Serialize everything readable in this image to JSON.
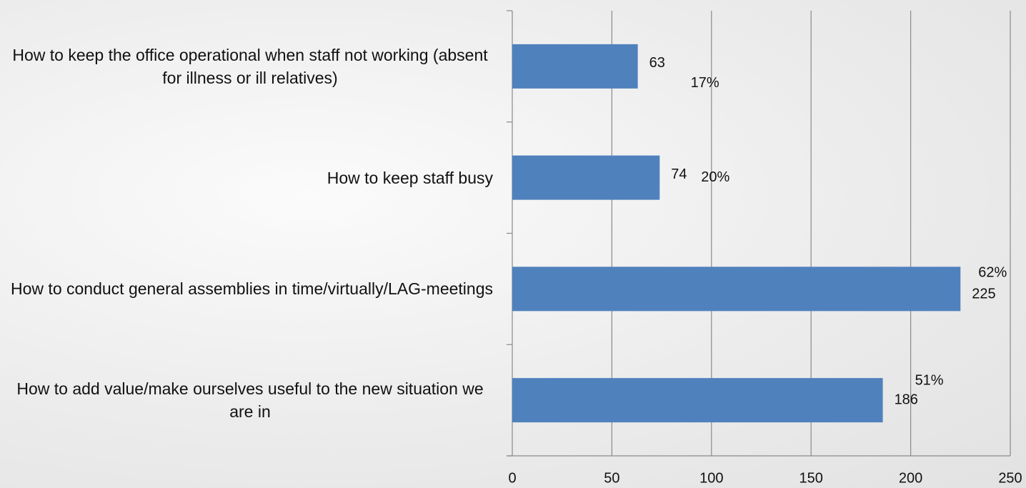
{
  "chart_data": {
    "type": "barh",
    "categories": [
      "How to keep the office operational when staff not working (absent for illness or ill relatives)",
      "How to keep staff busy",
      "How to conduct general assemblies in time/virtually/LAG-meetings",
      "How to add value/make ourselves useful to the new situation we are in"
    ],
    "values": [
      63,
      74,
      225,
      186
    ],
    "annotations": [
      "17%",
      "20%",
      "62%",
      "51%"
    ],
    "color": "#4f81bd",
    "xlim": [
      0,
      250
    ],
    "xticks": [
      0,
      50,
      100,
      150,
      200,
      250
    ],
    "grid": true
  }
}
